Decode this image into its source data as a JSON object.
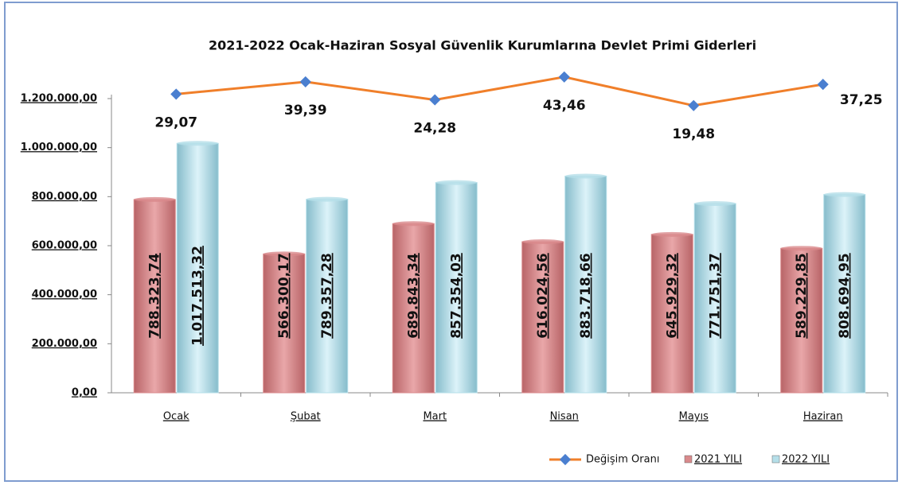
{
  "chart_data": {
    "type": "bar",
    "title": "2021-2022  Ocak-Haziran Sosyal  Güvenlik Kurumlarına  Devlet Primi Giderleri",
    "categories": [
      "Ocak",
      "Şubat",
      "Mart",
      "Nisan",
      "Mayıs",
      "Haziran"
    ],
    "series": [
      {
        "name": "Değişim Oranı",
        "type": "line",
        "axis": "y2",
        "color": "#f07f2a",
        "marker_color": "#4a7fd0",
        "values": [
          29.07,
          39.39,
          24.28,
          43.46,
          19.48,
          37.25
        ],
        "value_labels": [
          "29,07",
          "39,39",
          "24,28",
          "43,46",
          "19,48",
          "37,25"
        ]
      },
      {
        "name": "2021 YILI",
        "type": "bar",
        "color": "#d98a8c",
        "values": [
          788323.74,
          566300.17,
          689843.34,
          616024.56,
          645929.32,
          589229.85
        ],
        "value_labels": [
          "788.323,74",
          "566.300,17",
          "689.843,34",
          "616.024,56",
          "645.929,32",
          "589.229,85"
        ]
      },
      {
        "name": "2022 YILI",
        "type": "bar",
        "color": "#b5dfe9",
        "values": [
          1017513.32,
          789357.28,
          857354.03,
          883718.66,
          771751.37,
          808694.95
        ],
        "value_labels": [
          "1.017.513,32",
          "789.357,28",
          "857.354,03",
          "883.718,66",
          "771.751,37",
          "808.694,95"
        ]
      }
    ],
    "ylim": [
      0,
      1200000
    ],
    "yticks": [
      {
        "value": 0,
        "label": "0,00"
      },
      {
        "value": 200000,
        "label": "200.000,00"
      },
      {
        "value": 400000,
        "label": "400.000,00"
      },
      {
        "value": 600000,
        "label": "600.000,00"
      },
      {
        "value": 800000,
        "label": "800.000,00"
      },
      {
        "value": 1000000,
        "label": "1.000.000,00"
      },
      {
        "value": 1200000,
        "label": "1.200.000,00"
      }
    ],
    "y2lim": [
      0,
      50
    ],
    "legend": "bottom-right"
  }
}
